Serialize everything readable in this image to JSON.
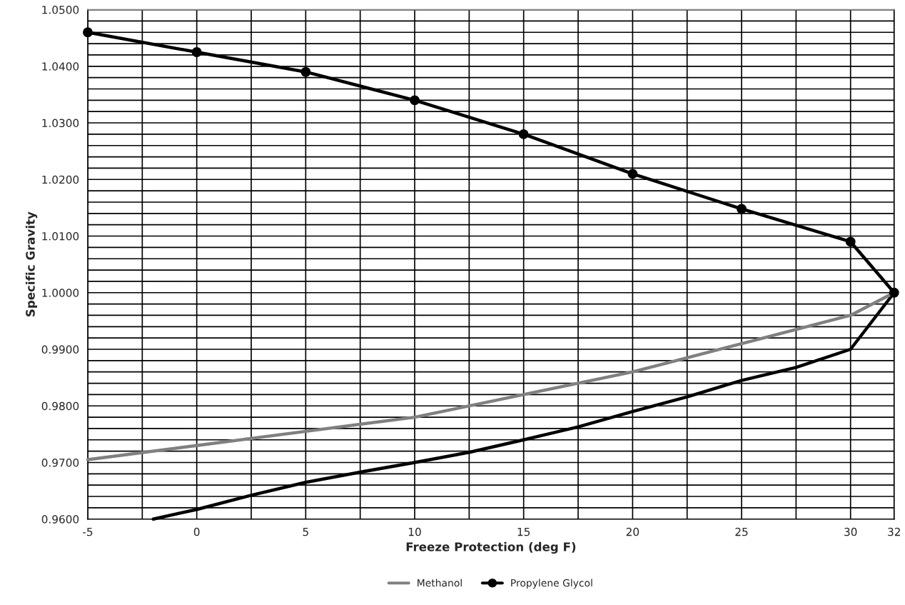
{
  "chart_data": {
    "type": "line",
    "xlabel": "Freeze Protection (deg F)",
    "ylabel": "Specific Gravity",
    "x": [
      -5,
      0,
      5,
      10,
      15,
      20,
      25,
      30,
      32
    ],
    "series": [
      {
        "color": "#000000",
        "marker": "none",
        "x": [
          -2.0,
          0,
          2.5,
          5,
          7.5,
          10,
          12.5,
          15,
          17.5,
          20,
          22.5,
          25,
          27.5,
          30,
          32
        ],
        "values": [
          0.96,
          0.9617,
          0.9642,
          0.9665,
          0.9683,
          0.97,
          0.9718,
          0.974,
          0.9763,
          0.979,
          0.9816,
          0.9845,
          0.9868,
          0.99,
          1.0
        ]
      },
      {
        "name": "Methanol",
        "color": "#808080",
        "marker": "none",
        "values": [
          0.9705,
          0.973,
          0.9755,
          0.978,
          0.982,
          0.986,
          0.991,
          0.996,
          1.0
        ]
      },
      {
        "name": "Propylene Glycol",
        "color": "#000000",
        "marker": "circle",
        "values": [
          1.046,
          1.0425,
          1.039,
          1.034,
          1.028,
          1.021,
          1.0148,
          1.009,
          1.0
        ]
      }
    ],
    "xlim": [
      -5,
      32
    ],
    "xticks": [
      {
        "value": -5,
        "label": "-5"
      },
      {
        "value": -2.5,
        "label": null
      },
      0,
      {
        "value": 2.5,
        "label": null
      },
      5,
      {
        "value": 7.5,
        "label": null
      },
      10,
      {
        "value": 12.5,
        "label": null
      },
      15,
      {
        "value": 17.5,
        "label": null
      },
      20,
      {
        "value": 22.5,
        "label": null
      },
      25,
      {
        "value": 27.5,
        "label": null
      },
      30,
      32
    ],
    "ylim": [
      0.96,
      1.05
    ],
    "yticks": [
      {
        "value": 0.96,
        "label": "0.9600"
      },
      {
        "value": 0.962,
        "label": null
      },
      {
        "value": 0.964,
        "label": null
      },
      {
        "value": 0.966,
        "label": null
      },
      {
        "value": 0.968,
        "label": null
      },
      {
        "value": 0.97,
        "label": "0.9700"
      },
      {
        "value": 0.972,
        "label": null
      },
      {
        "value": 0.974,
        "label": null
      },
      {
        "value": 0.976,
        "label": null
      },
      {
        "value": 0.978,
        "label": null
      },
      {
        "value": 0.98,
        "label": "0.9800"
      },
      {
        "value": 0.982,
        "label": null
      },
      {
        "value": 0.984,
        "label": null
      },
      {
        "value": 0.986,
        "label": null
      },
      {
        "value": 0.988,
        "label": null
      },
      {
        "value": 0.99,
        "label": "0.9900"
      },
      {
        "value": 0.992,
        "label": null
      },
      {
        "value": 0.994,
        "label": null
      },
      {
        "value": 0.996,
        "label": null
      },
      {
        "value": 0.998,
        "label": null
      },
      {
        "value": 1.0,
        "label": "1.0000"
      },
      {
        "value": 1.002,
        "label": null
      },
      {
        "value": 1.004,
        "label": null
      },
      {
        "value": 1.006,
        "label": null
      },
      {
        "value": 1.008,
        "label": null
      },
      {
        "value": 1.01,
        "label": "1.0100"
      },
      {
        "value": 1.012,
        "label": null
      },
      {
        "value": 1.014,
        "label": null
      },
      {
        "value": 1.016,
        "label": null
      },
      {
        "value": 1.018,
        "label": null
      },
      {
        "value": 1.02,
        "label": "1.0200"
      },
      {
        "value": 1.022,
        "label": null
      },
      {
        "value": 1.024,
        "label": null
      },
      {
        "value": 1.026,
        "label": null
      },
      {
        "value": 1.028,
        "label": null
      },
      {
        "value": 1.03,
        "label": "1.0300"
      },
      {
        "value": 1.032,
        "label": null
      },
      {
        "value": 1.034,
        "label": null
      },
      {
        "value": 1.036,
        "label": null
      },
      {
        "value": 1.038,
        "label": null
      },
      {
        "value": 1.04,
        "label": "1.0400"
      },
      {
        "value": 1.042,
        "label": null
      },
      {
        "value": 1.044,
        "label": null
      },
      {
        "value": 1.046,
        "label": null
      },
      {
        "value": 1.048,
        "label": null
      },
      {
        "value": 1.05,
        "label": "1.0500"
      }
    ],
    "grid": true,
    "legend": "bottom",
    "line_style": "solid"
  }
}
